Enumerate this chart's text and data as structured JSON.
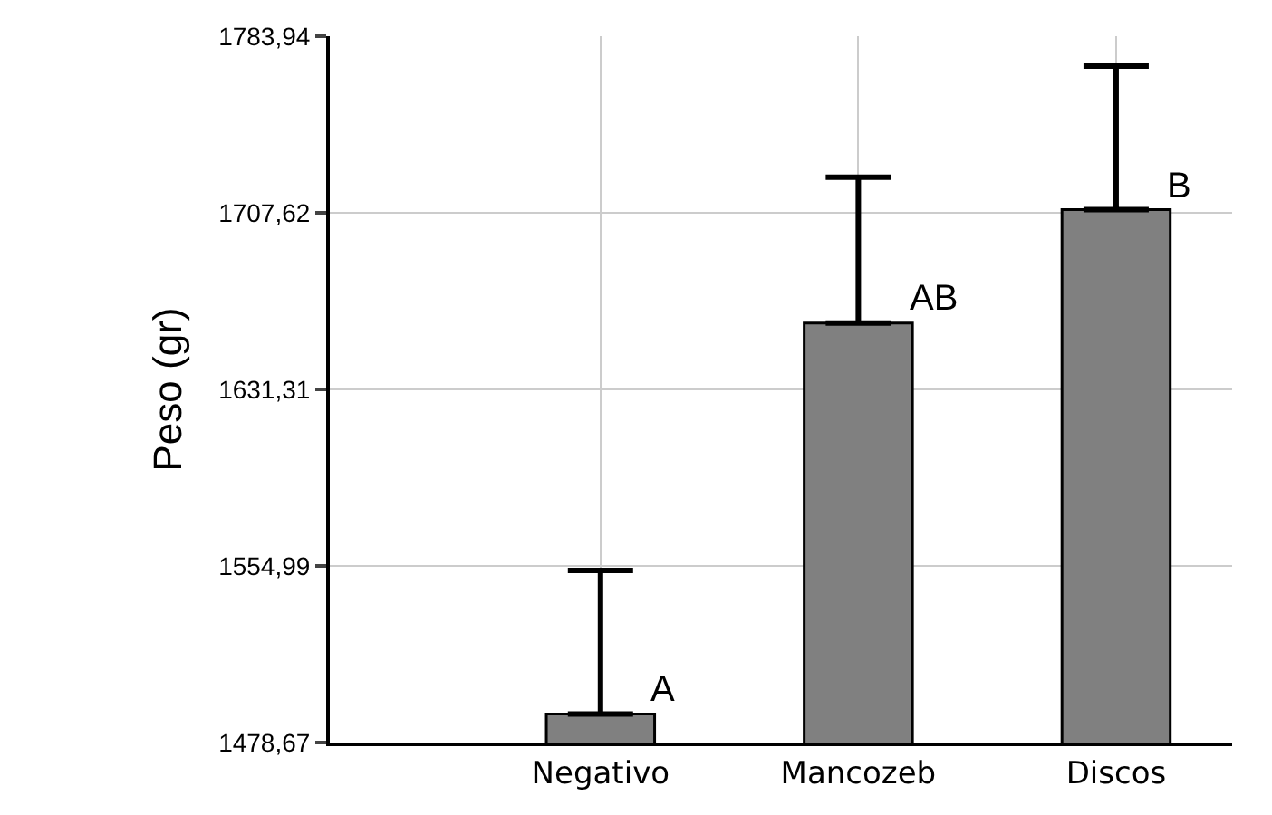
{
  "chart_data": {
    "type": "bar",
    "ylabel": "Peso (gr)",
    "categories": [
      "Negativo",
      "Mancozeb",
      "Discos"
    ],
    "values": [
      1491,
      1660,
      1709
    ],
    "errors": [
      [
        1491,
        1553
      ],
      [
        1660,
        1723
      ],
      [
        1709,
        1771
      ]
    ],
    "color": "#808080",
    "ylim": [
      1478.67,
      1783.94
    ],
    "yticks": [
      {
        "value": 1478.67,
        "label": "1478,67"
      },
      {
        "value": 1554.99,
        "label": "1554,99"
      },
      {
        "value": 1631.31,
        "label": "1631,31"
      },
      {
        "value": 1707.62,
        "label": "1707,62"
      },
      {
        "value": 1783.94,
        "label": "1783,94"
      }
    ],
    "grid": true,
    "annotations": [
      {
        "text": "A",
        "x": "Negativo",
        "y": 1491
      },
      {
        "text": "AB",
        "x": "Mancozeb",
        "y": 1660
      },
      {
        "text": "B",
        "x": "Discos",
        "y": 1709
      }
    ]
  }
}
